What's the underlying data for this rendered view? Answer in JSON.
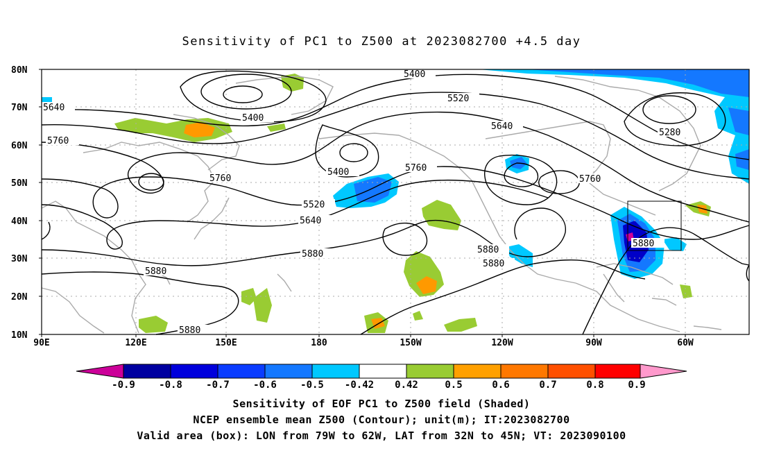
{
  "title": "Sensitivity of PC1 to Z500 at 2023082700 +4.5 day",
  "map": {
    "lat_labels": [
      "80N",
      "70N",
      "60N",
      "50N",
      "40N",
      "30N",
      "20N",
      "10N"
    ],
    "lon_labels": [
      "90E",
      "120E",
      "150E",
      "180",
      "150W",
      "120W",
      "90W",
      "60W"
    ],
    "contour_labels": [
      "5400",
      "5640",
      "5520",
      "5400",
      "5760",
      "5640",
      "5280",
      "5400",
      "5760",
      "5760",
      "5520",
      "5640",
      "5760",
      "5880",
      "5880",
      "5880",
      "5880",
      "5880",
      "5880"
    ],
    "colors": {
      "coastline": "#aaaaaa",
      "contour": "#000000",
      "grid": "#aaaaaa",
      "neg_light": "#00c8ff",
      "neg_mid": "#1478ff",
      "neg_dark": "#0000c8",
      "pos_green": "#99cc33",
      "pos_orange": "#ff9900",
      "pos_red": "#ff3300",
      "extreme_neg": "#cc0099"
    }
  },
  "colorbar": {
    "labels": [
      "-0.9",
      "-0.8",
      "-0.7",
      "-0.6",
      "-0.5",
      "-0.42",
      "0.42",
      "0.5",
      "0.6",
      "0.7",
      "0.8",
      "0.9"
    ],
    "colors": [
      "#cc0099",
      "#0000a0",
      "#0000dc",
      "#0a3cff",
      "#1478ff",
      "#0096ff",
      "#00c8ff",
      "#ffffff",
      "#99cc33",
      "#ffa000",
      "#ff7800",
      "#ff5000",
      "#ff2800",
      "#ff0000",
      "#ff99cc"
    ]
  },
  "captions": {
    "line1": "Sensitivity of EOF PC1 to Z500 field (Shaded)",
    "line2": "NCEP ensemble mean Z500 (Contour); unit(m); IT:2023082700",
    "line3": "Valid area (box): LON from 79W to 62W, LAT from 32N to 45N; VT: 2023090100"
  }
}
